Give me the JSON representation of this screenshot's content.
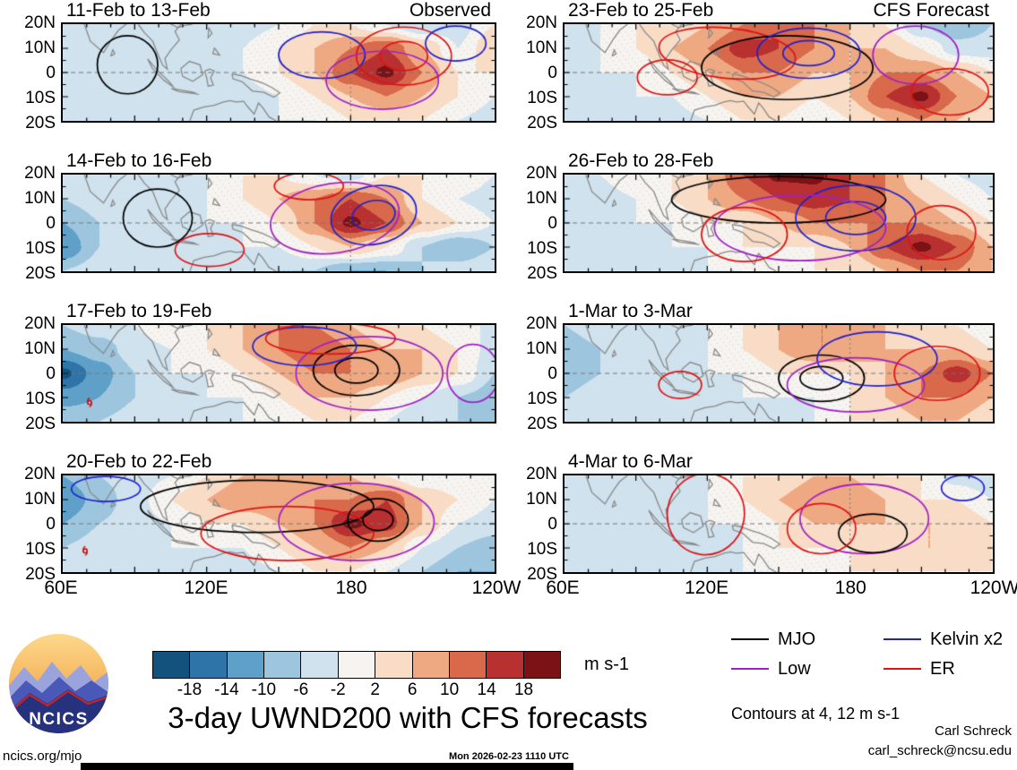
{
  "figure": {
    "title": "3-day UWND200 with CFS forecasts",
    "contours_note": "Contours at 4, 12 m s-1",
    "units": "m s-1",
    "site": "ncics.org/mjo",
    "timestamp": "Mon 2026-02-23 1110 UTC",
    "credit_name": "Carl Schreck",
    "credit_email": "carl_schreck@ncsu.edu",
    "logo_text": "NCICS"
  },
  "columns": [
    {
      "header": "Observed"
    },
    {
      "header": "CFS Forecast"
    }
  ],
  "axes": {
    "lat_ticks": [
      "20N",
      "10N",
      "0",
      "10S",
      "20S"
    ],
    "lon_ticks": [
      "60E",
      "120E",
      "180",
      "120W"
    ],
    "lon_range_deg": [
      60,
      240
    ],
    "lat_range_deg": [
      -20,
      20
    ]
  },
  "colorbar": {
    "tick_labels": [
      "-18",
      "-14",
      "-10",
      "-6",
      "-2",
      "2",
      "6",
      "10",
      "14",
      "18"
    ],
    "thresholds": [
      -18,
      -14,
      -10,
      -6,
      -2,
      2,
      6,
      10,
      14,
      18
    ],
    "colors": [
      "#14527e",
      "#2e74a8",
      "#5ea0c8",
      "#9dc6de",
      "#cfe2ee",
      "#f6f4f0",
      "#f8dcc6",
      "#efa982",
      "#d8694b",
      "#b93030",
      "#7a1216"
    ]
  },
  "legend": [
    {
      "label": "MJO",
      "color": "#000000"
    },
    {
      "label": "Kelvin x2",
      "color": "#2020cc"
    },
    {
      "label": "Low",
      "color": "#a020c8"
    },
    {
      "label": "ER",
      "color": "#dd1414"
    }
  ],
  "chart_data": {
    "type": "heatmap",
    "variable": "UWND200 anomaly",
    "units": "m s-1",
    "contour_levels": [
      4,
      12
    ],
    "x_deg_east": [
      60,
      75,
      90,
      105,
      120,
      135,
      150,
      165,
      180,
      195,
      210,
      225,
      240
    ],
    "y_deg_north": [
      20,
      10,
      0,
      -10,
      -20
    ],
    "panels": [
      {
        "label": "11-Feb to 13-Feb",
        "column": "Observed",
        "grid": [
          [
            -4,
            -2,
            -2,
            -2,
            -4,
            -4,
            -2,
            2,
            2,
            -2,
            -6,
            -4,
            2
          ],
          [
            -4,
            -2,
            -4,
            -4,
            -4,
            -2,
            2,
            6,
            10,
            14,
            6,
            -2,
            6
          ],
          [
            -6,
            -4,
            -4,
            -4,
            -4,
            -2,
            2,
            6,
            14,
            19,
            10,
            2,
            2
          ],
          [
            -4,
            -4,
            -2,
            -2,
            -4,
            -4,
            -2,
            2,
            6,
            10,
            6,
            2,
            -2
          ],
          [
            -4,
            -2,
            -2,
            -2,
            -6,
            -4,
            -2,
            -2,
            2,
            2,
            2,
            -2,
            -4
          ]
        ],
        "contours": [
          {
            "wave": "MJO",
            "x": 0.15,
            "y": 0.42,
            "rx": 0.07,
            "ry": 0.3
          },
          {
            "wave": "Kelvin",
            "x": 0.6,
            "y": 0.32,
            "rx": 0.1,
            "ry": 0.24
          },
          {
            "wave": "ER",
            "x": 0.79,
            "y": 0.33,
            "rx": 0.11,
            "ry": 0.3,
            "double": true
          },
          {
            "wave": "Low",
            "x": 0.74,
            "y": 0.58,
            "rx": 0.13,
            "ry": 0.3
          },
          {
            "wave": "Kelvin",
            "x": 0.91,
            "y": 0.2,
            "rx": 0.07,
            "ry": 0.18
          }
        ]
      },
      {
        "label": "14-Feb to 16-Feb",
        "column": "Observed",
        "grid": [
          [
            -2,
            -2,
            -2,
            -2,
            -2,
            2,
            2,
            -2,
            -4,
            2,
            2,
            2,
            -2
          ],
          [
            -6,
            -4,
            -2,
            -2,
            -2,
            2,
            6,
            10,
            14,
            10,
            2,
            -2,
            -4
          ],
          [
            -10,
            -6,
            -2,
            -2,
            -2,
            -2,
            2,
            10,
            19,
            14,
            6,
            2,
            -2
          ],
          [
            -14,
            -6,
            -2,
            -2,
            -2,
            -2,
            -2,
            2,
            6,
            2,
            -6,
            -10,
            -6
          ],
          [
            -6,
            -4,
            -2,
            -2,
            -2,
            -4,
            -6,
            -6,
            -10,
            -10,
            -6,
            -4,
            -2
          ]
        ],
        "contours": [
          {
            "wave": "MJO",
            "x": 0.22,
            "y": 0.45,
            "rx": 0.08,
            "ry": 0.3
          },
          {
            "wave": "Kelvin",
            "x": 0.72,
            "y": 0.42,
            "rx": 0.1,
            "ry": 0.3,
            "double": true,
            "rot": -0.2
          },
          {
            "wave": "Low",
            "x": 0.63,
            "y": 0.45,
            "rx": 0.15,
            "ry": 0.36,
            "rot": -0.15
          },
          {
            "wave": "ER",
            "x": 0.34,
            "y": 0.78,
            "rx": 0.08,
            "ry": 0.17
          },
          {
            "wave": "ER",
            "x": 0.57,
            "y": 0.12,
            "rx": 0.08,
            "ry": 0.14
          }
        ]
      },
      {
        "label": "17-Feb to 19-Feb",
        "column": "Observed",
        "grid": [
          [
            -6,
            -4,
            -2,
            2,
            2,
            6,
            10,
            10,
            6,
            2,
            2,
            -2,
            -2
          ],
          [
            -10,
            -8,
            -4,
            -2,
            2,
            6,
            10,
            14,
            10,
            6,
            6,
            2,
            -4
          ],
          [
            -19,
            -12,
            -6,
            -2,
            -2,
            2,
            6,
            10,
            10,
            10,
            6,
            2,
            -6
          ],
          [
            -12,
            -10,
            -6,
            -2,
            -2,
            -2,
            2,
            6,
            6,
            2,
            -2,
            -6,
            -8
          ],
          [
            -6,
            -6,
            -4,
            -2,
            -2,
            -2,
            -2,
            2,
            2,
            -2,
            -6,
            -6,
            -6
          ]
        ],
        "contours": [
          {
            "wave": "MJO",
            "x": 0.68,
            "y": 0.47,
            "rx": 0.1,
            "ry": 0.26,
            "double": true
          },
          {
            "wave": "Low",
            "x": 0.71,
            "y": 0.5,
            "rx": 0.17,
            "ry": 0.38
          },
          {
            "wave": "Kelvin",
            "x": 0.56,
            "y": 0.22,
            "rx": 0.12,
            "ry": 0.2
          },
          {
            "wave": "ER",
            "x": 0.62,
            "y": 0.14,
            "rx": 0.15,
            "ry": 0.16
          },
          {
            "wave": "Low",
            "x": 0.95,
            "y": 0.5,
            "rx": 0.06,
            "ry": 0.3
          }
        ],
        "cyclone": {
          "x": 0.062,
          "y": 0.8
        }
      },
      {
        "label": "20-Feb to 22-Feb",
        "column": "Observed",
        "grid": [
          [
            -10,
            -6,
            -4,
            -2,
            2,
            6,
            10,
            10,
            6,
            2,
            -2,
            -2,
            -2
          ],
          [
            -14,
            -8,
            -4,
            2,
            6,
            10,
            10,
            10,
            10,
            14,
            6,
            2,
            -2
          ],
          [
            -10,
            -6,
            -4,
            -2,
            2,
            2,
            6,
            10,
            19,
            16,
            6,
            -2,
            -4
          ],
          [
            -6,
            -4,
            -4,
            -2,
            -2,
            -2,
            2,
            6,
            10,
            6,
            -2,
            -6,
            -8
          ],
          [
            -4,
            -2,
            -2,
            -2,
            -4,
            -4,
            -2,
            2,
            2,
            -2,
            -6,
            -10,
            -10
          ]
        ],
        "contours": [
          {
            "wave": "MJO",
            "x": 0.45,
            "y": 0.32,
            "rx": 0.27,
            "ry": 0.27
          },
          {
            "wave": "ER",
            "x": 0.52,
            "y": 0.6,
            "rx": 0.2,
            "ry": 0.28
          },
          {
            "wave": "Low",
            "x": 0.68,
            "y": 0.48,
            "rx": 0.18,
            "ry": 0.4
          },
          {
            "wave": "MJO",
            "x": 0.73,
            "y": 0.46,
            "rx": 0.07,
            "ry": 0.22,
            "double": true
          },
          {
            "wave": "Kelvin",
            "x": 0.1,
            "y": 0.14,
            "rx": 0.08,
            "ry": 0.13
          }
        ],
        "cyclone": {
          "x": 0.052,
          "y": 0.78
        }
      },
      {
        "label": "23-Feb to 25-Feb",
        "column": "CFS Forecast",
        "grid": [
          [
            -4,
            -2,
            2,
            2,
            6,
            10,
            14,
            10,
            6,
            2,
            -6,
            -10,
            -6
          ],
          [
            -4,
            -2,
            2,
            6,
            10,
            16,
            14,
            10,
            6,
            6,
            2,
            -4,
            -4
          ],
          [
            -4,
            -2,
            -2,
            2,
            6,
            10,
            10,
            6,
            6,
            10,
            10,
            6,
            2
          ],
          [
            -2,
            -2,
            -2,
            -2,
            2,
            6,
            6,
            2,
            6,
            14,
            19,
            10,
            6
          ],
          [
            -2,
            -2,
            -2,
            -4,
            -2,
            2,
            2,
            -2,
            2,
            6,
            10,
            6,
            2
          ]
        ],
        "contours": [
          {
            "wave": "ER",
            "x": 0.38,
            "y": 0.3,
            "rx": 0.16,
            "ry": 0.26,
            "rot": 0.1
          },
          {
            "wave": "MJO",
            "x": 0.52,
            "y": 0.45,
            "rx": 0.2,
            "ry": 0.33
          },
          {
            "wave": "Kelvin",
            "x": 0.57,
            "y": 0.3,
            "rx": 0.12,
            "ry": 0.26,
            "double": true
          },
          {
            "wave": "Low",
            "x": 0.82,
            "y": 0.32,
            "rx": 0.1,
            "ry": 0.3
          },
          {
            "wave": "ER",
            "x": 0.9,
            "y": 0.7,
            "rx": 0.09,
            "ry": 0.24
          },
          {
            "wave": "ER",
            "x": 0.24,
            "y": 0.55,
            "rx": 0.07,
            "ry": 0.18
          }
        ]
      },
      {
        "label": "26-Feb to 28-Feb",
        "column": "CFS Forecast",
        "grid": [
          [
            -4,
            -2,
            2,
            2,
            6,
            14,
            19,
            19,
            14,
            10,
            2,
            -2,
            -4
          ],
          [
            -6,
            -4,
            -2,
            2,
            6,
            10,
            14,
            16,
            14,
            10,
            6,
            2,
            -2
          ],
          [
            -6,
            -4,
            -2,
            -2,
            2,
            2,
            6,
            10,
            10,
            10,
            10,
            6,
            2
          ],
          [
            -4,
            -2,
            -2,
            -2,
            -2,
            2,
            2,
            2,
            6,
            14,
            19,
            14,
            6
          ],
          [
            -2,
            -2,
            -2,
            -2,
            -2,
            -2,
            2,
            2,
            2,
            6,
            10,
            10,
            6
          ]
        ],
        "contours": [
          {
            "wave": "MJO",
            "x": 0.5,
            "y": 0.26,
            "rx": 0.25,
            "ry": 0.24
          },
          {
            "wave": "Kelvin",
            "x": 0.68,
            "y": 0.45,
            "rx": 0.14,
            "ry": 0.34,
            "double": true
          },
          {
            "wave": "Low",
            "x": 0.55,
            "y": 0.55,
            "rx": 0.2,
            "ry": 0.34
          },
          {
            "wave": "ER",
            "x": 0.42,
            "y": 0.62,
            "rx": 0.1,
            "ry": 0.28
          },
          {
            "wave": "ER",
            "x": 0.88,
            "y": 0.6,
            "rx": 0.08,
            "ry": 0.28
          }
        ]
      },
      {
        "label": "1-Mar to 3-Mar",
        "column": "CFS Forecast",
        "grid": [
          [
            -6,
            -4,
            -2,
            -2,
            -2,
            2,
            6,
            10,
            10,
            6,
            2,
            2,
            -2
          ],
          [
            -8,
            -6,
            -4,
            -2,
            -2,
            2,
            6,
            10,
            10,
            6,
            6,
            6,
            2
          ],
          [
            -8,
            -6,
            -4,
            -2,
            -2,
            -2,
            2,
            2,
            2,
            6,
            10,
            16,
            10
          ],
          [
            -6,
            -4,
            -2,
            -2,
            -2,
            -2,
            -2,
            -2,
            2,
            6,
            10,
            10,
            6
          ],
          [
            -4,
            -2,
            -2,
            -2,
            -2,
            -2,
            -2,
            -2,
            2,
            2,
            6,
            6,
            2
          ]
        ],
        "contours": [
          {
            "wave": "MJO",
            "x": 0.6,
            "y": 0.55,
            "rx": 0.1,
            "ry": 0.24,
            "double": true
          },
          {
            "wave": "Kelvin",
            "x": 0.73,
            "y": 0.35,
            "rx": 0.14,
            "ry": 0.28
          },
          {
            "wave": "Low",
            "x": 0.68,
            "y": 0.62,
            "rx": 0.16,
            "ry": 0.28
          },
          {
            "wave": "ER",
            "x": 0.27,
            "y": 0.62,
            "rx": 0.05,
            "ry": 0.14
          },
          {
            "wave": "ER",
            "x": 0.87,
            "y": 0.5,
            "rx": 0.1,
            "ry": 0.28
          }
        ]
      },
      {
        "label": "4-Mar to 6-Mar",
        "column": "CFS Forecast",
        "grid": [
          [
            -4,
            -2,
            -2,
            -2,
            -2,
            2,
            2,
            6,
            6,
            2,
            2,
            -4,
            -6
          ],
          [
            -6,
            -4,
            -2,
            -2,
            -2,
            2,
            6,
            10,
            10,
            6,
            2,
            2,
            -2
          ],
          [
            -4,
            -2,
            -2,
            -2,
            -2,
            -2,
            2,
            6,
            6,
            6,
            6,
            6,
            2
          ],
          [
            -4,
            -2,
            -2,
            -2,
            -2,
            -2,
            2,
            2,
            2,
            6,
            6,
            6,
            2
          ],
          [
            -2,
            -2,
            -2,
            -2,
            -2,
            -2,
            -2,
            2,
            2,
            2,
            2,
            2,
            2
          ]
        ],
        "contours": [
          {
            "wave": "Low",
            "x": 0.7,
            "y": 0.45,
            "rx": 0.15,
            "ry": 0.36
          },
          {
            "wave": "MJO",
            "x": 0.72,
            "y": 0.6,
            "rx": 0.08,
            "ry": 0.2
          },
          {
            "wave": "ER",
            "x": 0.33,
            "y": 0.4,
            "rx": 0.09,
            "ry": 0.42,
            "rot": 0.15
          },
          {
            "wave": "Kelvin",
            "x": 0.93,
            "y": 0.13,
            "rx": 0.05,
            "ry": 0.13
          },
          {
            "wave": "ER",
            "x": 0.6,
            "y": 0.55,
            "rx": 0.08,
            "ry": 0.26
          }
        ]
      }
    ]
  }
}
